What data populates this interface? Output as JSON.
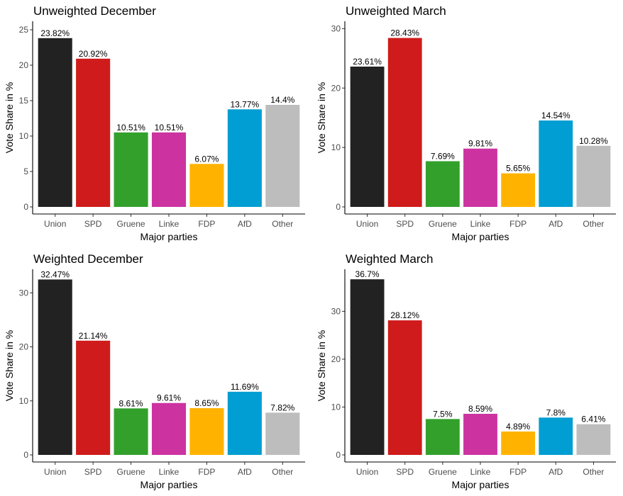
{
  "colors": {
    "Union": "#222222",
    "SPD": "#cf1b1b",
    "Gruene": "#33a02c",
    "Linke": "#cc33a0",
    "FDP": "#ffb300",
    "AfD": "#009ed2",
    "Other": "#bdbdbd"
  },
  "chart_data": [
    {
      "type": "bar",
      "title": "Unweighted December",
      "xlabel": "Major parties",
      "ylabel": "Vote Share in %",
      "categories": [
        "Union",
        "SPD",
        "Gruene",
        "Linke",
        "FDP",
        "AfD",
        "Other"
      ],
      "values": [
        23.82,
        20.92,
        10.51,
        10.51,
        6.07,
        13.77,
        14.4
      ],
      "labels": [
        "23.82%",
        "20.92%",
        "10.51%",
        "10.51%",
        "6.07%",
        "13.77%",
        "14.4%"
      ],
      "yticks": [
        0,
        5,
        10,
        15,
        20,
        25
      ],
      "ylim": [
        0,
        26
      ]
    },
    {
      "type": "bar",
      "title": "Unweighted March",
      "xlabel": "Major parties",
      "ylabel": "Vote Share in %",
      "categories": [
        "Union",
        "SPD",
        "Gruene",
        "Linke",
        "FDP",
        "AfD",
        "Other"
      ],
      "values": [
        23.61,
        28.43,
        7.69,
        9.81,
        5.65,
        14.54,
        10.28
      ],
      "labels": [
        "23.61%",
        "28.43%",
        "7.69%",
        "9.81%",
        "5.65%",
        "14.54%",
        "10.28%"
      ],
      "yticks": [
        0,
        10,
        20,
        30
      ],
      "ylim": [
        0,
        31
      ]
    },
    {
      "type": "bar",
      "title": "Weighted December",
      "xlabel": "Major parties",
      "ylabel": "Vote Share in %",
      "categories": [
        "Union",
        "SPD",
        "Gruene",
        "Linke",
        "FDP",
        "AfD",
        "Other"
      ],
      "values": [
        32.47,
        21.14,
        8.61,
        9.61,
        8.65,
        11.69,
        7.82
      ],
      "labels": [
        "32.47%",
        "21.14%",
        "8.61%",
        "9.61%",
        "8.65%",
        "11.69%",
        "7.82%"
      ],
      "yticks": [
        0,
        10,
        20,
        30
      ],
      "ylim": [
        0,
        34.1
      ]
    },
    {
      "type": "bar",
      "title": "Weighted March",
      "xlabel": "Major parties",
      "ylabel": "Vote Share in %",
      "categories": [
        "Union",
        "SPD",
        "Gruene",
        "Linke",
        "FDP",
        "AfD",
        "Other"
      ],
      "values": [
        36.7,
        28.12,
        7.5,
        8.59,
        4.89,
        7.8,
        6.41
      ],
      "labels": [
        "36.7%",
        "28.12%",
        "7.5%",
        "8.59%",
        "4.89%",
        "7.8%",
        "6.41%"
      ],
      "yticks": [
        0,
        10,
        20,
        30
      ],
      "ylim": [
        0,
        38.5
      ]
    }
  ]
}
